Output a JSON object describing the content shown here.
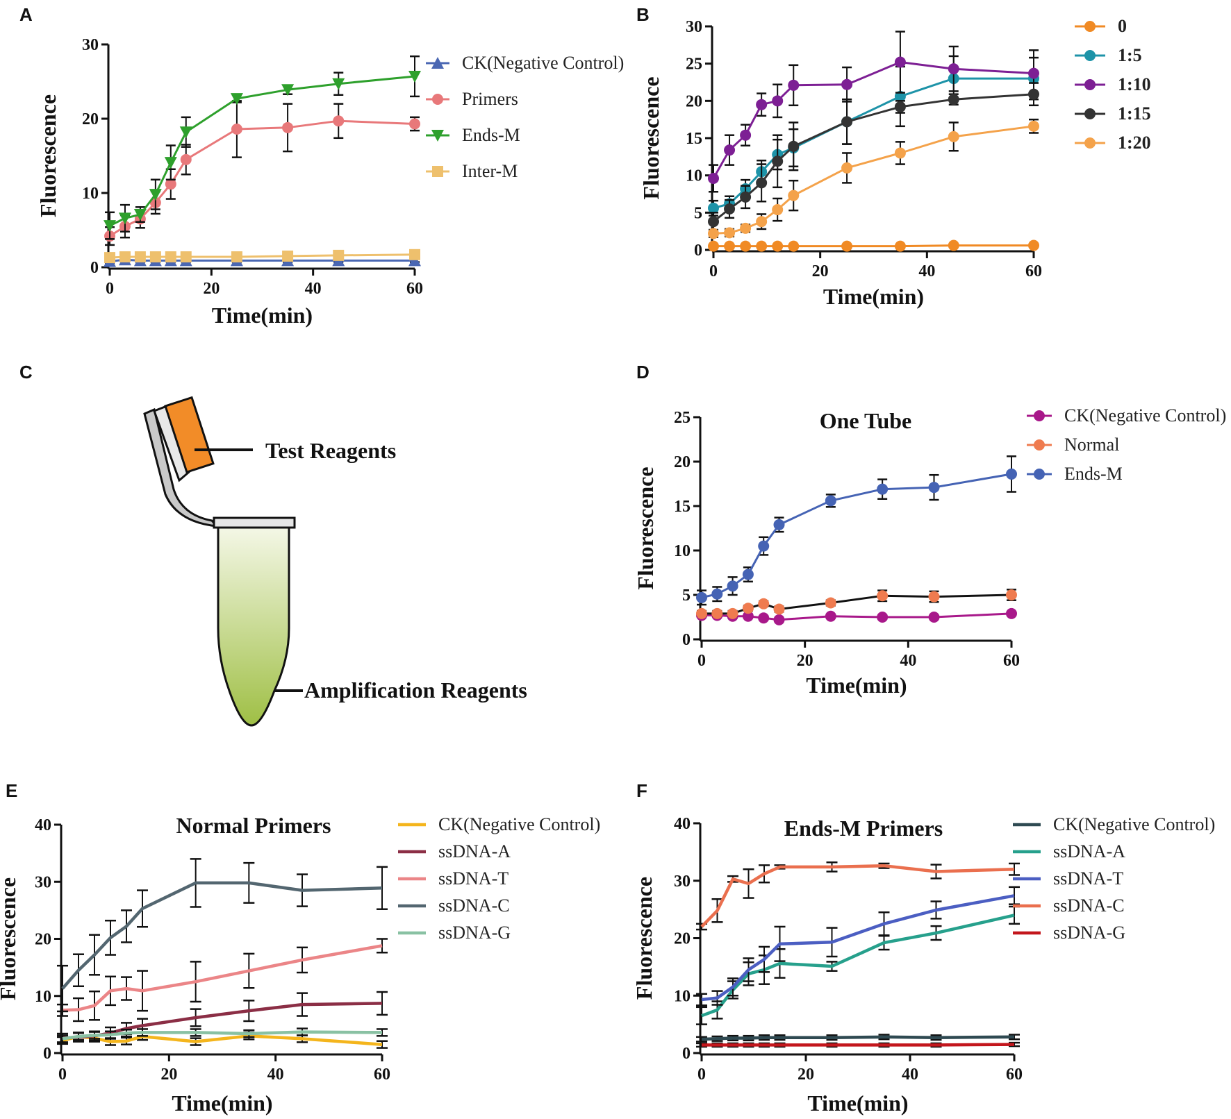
{
  "panels": {
    "A": "A",
    "B": "B",
    "C": "C",
    "D": "D",
    "E": "E",
    "F": "F"
  },
  "diagram_c": {
    "test_label": "Test Reagents",
    "amp_label": "Amplification Reagents",
    "lid_color": "#F28C28",
    "liquid_top": "#f4f7e6",
    "liquid_bottom": "#9fbf45"
  },
  "chart_data": [
    {
      "id": "A",
      "type": "line",
      "title": "",
      "xlabel": "Time(min)",
      "ylabel": "Fluorescence",
      "xlim": [
        0,
        60
      ],
      "ylim": [
        0,
        30
      ],
      "xticks": [
        0,
        20,
        40,
        60
      ],
      "yticks": [
        0,
        10,
        20,
        30
      ],
      "legend_style": "normal",
      "series": [
        {
          "name": "CK(Negative Control)",
          "color": "#4a67b3",
          "marker": "triangle",
          "x": [
            0,
            3,
            6,
            9,
            12,
            15,
            25,
            35,
            45,
            60
          ],
          "y": [
            0.8,
            1.0,
            0.9,
            0.9,
            0.9,
            0.9,
            0.9,
            0.9,
            0.9,
            0.9
          ],
          "err": [
            0.2,
            0.2,
            0.2,
            0.2,
            0.2,
            0.2,
            0.2,
            0.2,
            0.2,
            0.2
          ]
        },
        {
          "name": "Primers",
          "color": "#e8787a",
          "marker": "circle",
          "x": [
            0,
            3,
            6,
            9,
            12,
            15,
            25,
            35,
            45,
            60
          ],
          "y": [
            4.2,
            5.5,
            6.5,
            8.7,
            11.2,
            14.5,
            18.6,
            18.8,
            19.7,
            19.3
          ],
          "err": [
            1.2,
            1.5,
            1.2,
            1.5,
            2.0,
            2.0,
            3.8,
            3.2,
            2.3,
            0.9
          ]
        },
        {
          "name": "Ends-M",
          "color": "#2ea02c",
          "marker": "triangle-down",
          "x": [
            0,
            3,
            6,
            9,
            12,
            15,
            25,
            35,
            45,
            60
          ],
          "y": [
            5.6,
            6.6,
            7.1,
            9.8,
            14.1,
            18.2,
            22.7,
            23.9,
            24.7,
            25.7
          ],
          "err": [
            1.8,
            1.8,
            1.0,
            2.0,
            2.3,
            2.0,
            0.5,
            0.6,
            1.5,
            2.7
          ]
        },
        {
          "name": "Inter-M",
          "color": "#eec06d",
          "marker": "square",
          "x": [
            0,
            3,
            6,
            9,
            12,
            15,
            25,
            35,
            45,
            60
          ],
          "y": [
            1.3,
            1.4,
            1.4,
            1.4,
            1.4,
            1.4,
            1.4,
            1.5,
            1.6,
            1.7
          ],
          "err": [
            0.2,
            0.2,
            0.2,
            0.2,
            0.2,
            0.2,
            0.2,
            0.2,
            0.2,
            0.2
          ]
        }
      ]
    },
    {
      "id": "B",
      "type": "line",
      "title": "",
      "xlabel": "Time(min)",
      "ylabel": "Fluorescence",
      "xlim": [
        0,
        60
      ],
      "ylim": [
        0,
        30
      ],
      "xticks": [
        0,
        20,
        40,
        60
      ],
      "yticks": [
        0,
        5,
        10,
        15,
        20,
        25,
        30
      ],
      "legend_style": "bold",
      "series": [
        {
          "name": "0",
          "color": "#f08a24",
          "marker": "circle",
          "x": [
            0,
            3,
            6,
            9,
            12,
            15,
            25,
            35,
            45,
            60
          ],
          "y": [
            0.5,
            0.5,
            0.5,
            0.5,
            0.5,
            0.5,
            0.5,
            0.5,
            0.6,
            0.6
          ],
          "err": [
            0.1,
            0.1,
            0.1,
            0.1,
            0.1,
            0.1,
            0.1,
            0.1,
            0.1,
            0.1
          ]
        },
        {
          "name": "1:5",
          "color": "#1d93a8",
          "marker": "circle",
          "x": [
            0,
            3,
            6,
            9,
            12,
            15,
            25,
            35,
            45,
            60
          ],
          "y": [
            5.6,
            6.2,
            8.2,
            10.5,
            12.8,
            13.7,
            17.2,
            20.6,
            23.0,
            23.0
          ],
          "err": [
            1.0,
            1.0,
            1.2,
            1.5,
            2.0,
            2.5,
            3.0,
            4.0,
            3.0,
            2.8
          ]
        },
        {
          "name": "1:10",
          "color": "#7d1f94",
          "marker": "circle",
          "x": [
            0,
            3,
            6,
            9,
            12,
            15,
            25,
            35,
            45,
            60
          ],
          "y": [
            9.6,
            13.4,
            15.4,
            19.5,
            20.0,
            22.1,
            22.2,
            25.2,
            24.3,
            23.7
          ],
          "err": [
            1.8,
            2.0,
            1.4,
            1.5,
            2.2,
            2.7,
            2.3,
            4.1,
            3.0,
            3.1
          ]
        },
        {
          "name": "1:15",
          "color": "#333333",
          "marker": "circle",
          "x": [
            0,
            3,
            6,
            9,
            12,
            15,
            25,
            35,
            45,
            60
          ],
          "y": [
            3.8,
            5.5,
            7.1,
            9.0,
            11.9,
            13.9,
            17.2,
            19.2,
            20.2,
            20.9
          ],
          "err": [
            1.2,
            1.2,
            1.5,
            2.5,
            3.5,
            3.2,
            3.0,
            0.8,
            0.7,
            1.5
          ]
        },
        {
          "name": "1:20",
          "color": "#f4a24a",
          "marker": "circle",
          "x": [
            0,
            3,
            6,
            9,
            12,
            15,
            25,
            35,
            45,
            60
          ],
          "y": [
            2.2,
            2.3,
            2.9,
            3.8,
            5.4,
            7.3,
            11.0,
            13.0,
            15.2,
            16.6
          ],
          "err": [
            0.5,
            0.5,
            0.5,
            1.0,
            1.5,
            2.0,
            2.0,
            1.5,
            1.9,
            0.9
          ]
        }
      ]
    },
    {
      "id": "D",
      "type": "line",
      "title": "One Tube",
      "xlabel": "Time(min)",
      "ylabel": "Fluorescence",
      "xlim": [
        0,
        60
      ],
      "ylim": [
        0,
        25
      ],
      "xticks": [
        0,
        20,
        40,
        60
      ],
      "yticks": [
        0,
        5,
        10,
        15,
        20,
        25
      ],
      "legend_style": "normal",
      "series": [
        {
          "name": "CK(Negative Control)",
          "color": "#a8188a",
          "marker": "circle",
          "x": [
            0,
            3,
            6,
            9,
            12,
            15,
            25,
            35,
            45,
            60
          ],
          "y": [
            2.7,
            2.7,
            2.6,
            2.6,
            2.4,
            2.2,
            2.6,
            2.5,
            2.5,
            2.9
          ],
          "err": [
            0.2,
            0.2,
            0.2,
            0.2,
            0.2,
            0.2,
            0.2,
            0.2,
            0.2,
            0.2
          ]
        },
        {
          "name": "Normal",
          "color": "#ef7b4f",
          "marker": "circle",
          "line_color": "#111111",
          "x": [
            0,
            3,
            6,
            9,
            12,
            15,
            25,
            35,
            45,
            60
          ],
          "y": [
            2.9,
            2.9,
            2.9,
            3.5,
            4.0,
            3.4,
            4.1,
            4.9,
            4.8,
            5.0
          ],
          "err": [
            0.3,
            0.3,
            0.3,
            0.3,
            0.3,
            0.3,
            0.3,
            0.6,
            0.6,
            0.6
          ]
        },
        {
          "name": "Ends-M",
          "color": "#4563b4",
          "marker": "circle",
          "x": [
            0,
            3,
            6,
            9,
            12,
            15,
            25,
            35,
            45,
            60
          ],
          "y": [
            4.7,
            5.1,
            6.0,
            7.3,
            10.5,
            12.9,
            15.6,
            16.9,
            17.1,
            18.6
          ],
          "err": [
            0.8,
            0.8,
            1.0,
            0.8,
            1.0,
            0.8,
            0.7,
            1.1,
            1.4,
            2.0
          ]
        }
      ]
    },
    {
      "id": "E",
      "type": "line",
      "title": "Normal Primers",
      "xlabel": "Time(min)",
      "ylabel": "Fluorescence",
      "xlim": [
        0,
        60
      ],
      "ylim": [
        0,
        40
      ],
      "xticks": [
        0,
        20,
        40,
        60
      ],
      "yticks": [
        0,
        10,
        20,
        30,
        40
      ],
      "legend_style": "normal",
      "series": [
        {
          "name": "CK(Negative Control)",
          "color": "#f4b51c",
          "marker": "none",
          "x": [
            0,
            3,
            6,
            9,
            12,
            15,
            25,
            35,
            45,
            60
          ],
          "y": [
            2.2,
            2.9,
            2.6,
            2.0,
            2.1,
            2.9,
            2.0,
            3.0,
            2.5,
            1.5
          ],
          "err": [
            0.6,
            0.6,
            0.6,
            0.6,
            0.6,
            0.6,
            0.6,
            0.6,
            0.6,
            0.6
          ]
        },
        {
          "name": "ssDNA-A",
          "color": "#8b2e45",
          "marker": "none",
          "x": [
            0,
            3,
            6,
            9,
            12,
            15,
            25,
            35,
            45,
            60
          ],
          "y": [
            2.6,
            2.8,
            3.0,
            3.5,
            4.3,
            4.8,
            6.2,
            7.4,
            8.5,
            8.7
          ],
          "err": [
            0.8,
            0.8,
            0.8,
            1.0,
            1.0,
            1.2,
            1.5,
            1.8,
            2.0,
            2.0
          ]
        },
        {
          "name": "ssDNA-T",
          "color": "#eb8587",
          "marker": "none",
          "x": [
            0,
            3,
            6,
            9,
            12,
            15,
            25,
            35,
            45,
            60
          ],
          "y": [
            7.5,
            7.6,
            8.3,
            10.9,
            11.3,
            10.9,
            12.5,
            14.4,
            16.3,
            18.8
          ],
          "err": [
            1.0,
            2.0,
            2.5,
            2.5,
            2.0,
            3.5,
            3.5,
            3.0,
            2.2,
            1.2
          ]
        },
        {
          "name": "ssDNA-C",
          "color": "#536670",
          "marker": "none",
          "x": [
            0,
            3,
            6,
            9,
            12,
            15,
            25,
            35,
            45,
            60
          ],
          "y": [
            11.3,
            14.5,
            17.2,
            20.2,
            22.2,
            25.3,
            29.8,
            29.8,
            28.5,
            28.9
          ],
          "err": [
            4.0,
            2.8,
            3.5,
            3.0,
            2.8,
            3.2,
            4.2,
            3.5,
            2.8,
            3.7
          ]
        },
        {
          "name": "ssDNA-G",
          "color": "#89c1a3",
          "marker": "none",
          "x": [
            0,
            3,
            6,
            9,
            12,
            15,
            25,
            35,
            45,
            60
          ],
          "y": [
            2.5,
            2.9,
            3.1,
            3.2,
            3.5,
            3.6,
            3.6,
            3.4,
            3.7,
            3.6
          ],
          "err": [
            0.6,
            0.6,
            0.6,
            0.6,
            0.6,
            0.6,
            0.6,
            0.6,
            0.6,
            0.6
          ]
        }
      ]
    },
    {
      "id": "F",
      "type": "line",
      "title": "Ends-M Primers",
      "xlabel": "Time(min)",
      "ylabel": "Fluorescence",
      "xlim": [
        0,
        60
      ],
      "ylim": [
        0,
        40
      ],
      "xticks": [
        0,
        20,
        40,
        60
      ],
      "yticks": [
        0,
        10,
        20,
        30,
        40
      ],
      "legend_style": "normal",
      "series": [
        {
          "name": "CK(Negative Control)",
          "color": "#2f4a52",
          "marker": "none",
          "x": [
            0,
            3,
            6,
            9,
            12,
            15,
            25,
            35,
            45,
            60
          ],
          "y": [
            2.4,
            2.5,
            2.6,
            2.6,
            2.7,
            2.7,
            2.7,
            2.8,
            2.7,
            2.8
          ],
          "err": [
            0.4,
            0.4,
            0.4,
            0.4,
            0.4,
            0.4,
            0.4,
            0.4,
            0.4,
            0.4
          ]
        },
        {
          "name": "ssDNA-A",
          "color": "#26a08c",
          "marker": "none",
          "x": [
            0,
            3,
            6,
            9,
            12,
            15,
            25,
            35,
            45,
            60
          ],
          "y": [
            6.5,
            7.5,
            11.0,
            13.8,
            14.5,
            15.6,
            15.1,
            19.2,
            20.9,
            24.0
          ],
          "err": [
            1.5,
            1.5,
            1.5,
            2.0,
            2.5,
            2.5,
            0.8,
            1.2,
            1.2,
            1.5
          ]
        },
        {
          "name": "ssDNA-T",
          "color": "#4b5ec2",
          "marker": "none",
          "x": [
            0,
            3,
            6,
            9,
            12,
            15,
            25,
            35,
            45,
            60
          ],
          "y": [
            9.3,
            9.6,
            11.5,
            14.5,
            16.3,
            19.0,
            19.3,
            22.5,
            24.9,
            27.4
          ],
          "err": [
            1.0,
            1.2,
            1.5,
            2.0,
            2.2,
            3.0,
            2.5,
            2.0,
            1.5,
            1.5
          ]
        },
        {
          "name": "ssDNA-C",
          "color": "#ea6f4e",
          "marker": "none",
          "x": [
            0,
            3,
            6,
            9,
            12,
            15,
            25,
            35,
            45,
            60
          ],
          "y": [
            22.0,
            24.8,
            30.3,
            29.5,
            31.2,
            32.4,
            32.4,
            32.6,
            31.6,
            32.0
          ],
          "err": [
            0.5,
            2.0,
            0.5,
            2.5,
            1.5,
            0.3,
            0.8,
            0.4,
            1.2,
            1.0
          ]
        },
        {
          "name": "ssDNA-G",
          "color": "#c3161c",
          "marker": "none",
          "x": [
            0,
            3,
            6,
            9,
            12,
            15,
            25,
            35,
            45,
            60
          ],
          "y": [
            1.4,
            1.4,
            1.4,
            1.4,
            1.4,
            1.4,
            1.4,
            1.4,
            1.4,
            1.5
          ],
          "err": [
            0.3,
            0.3,
            0.3,
            0.3,
            0.3,
            0.3,
            0.3,
            0.3,
            0.3,
            0.3
          ]
        }
      ]
    }
  ]
}
